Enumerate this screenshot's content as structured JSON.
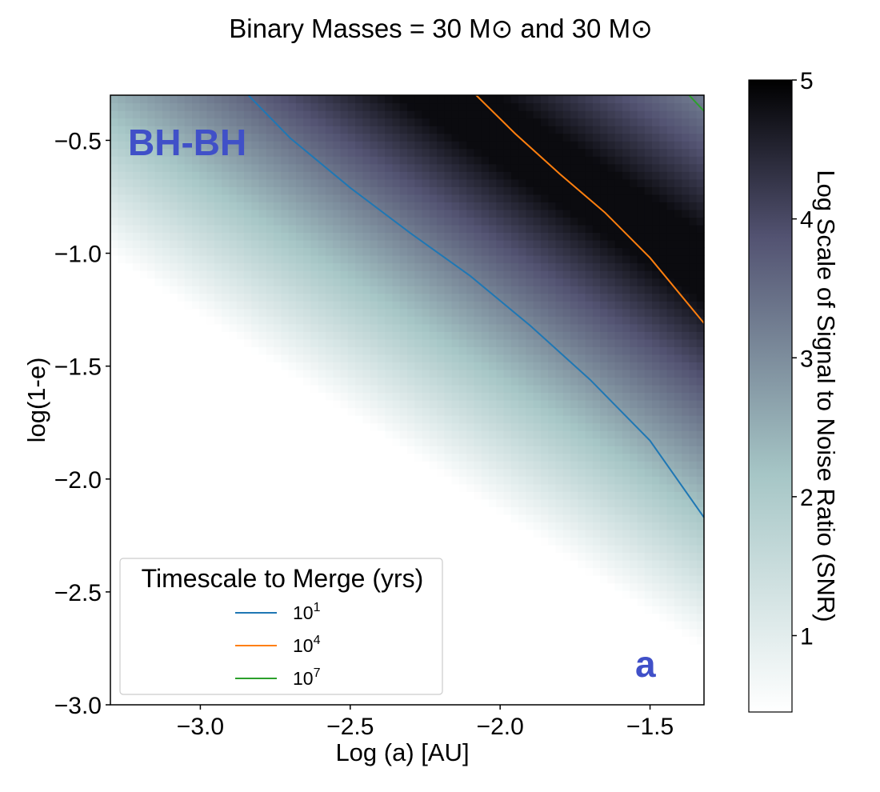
{
  "chart_data": {
    "type": "heatmap",
    "title": "Binary Masses = 30 M⊙ and 30 M⊙",
    "xlabel": "Log (a) [AU]",
    "ylabel": "log(1-e)",
    "xlim": [
      -3.3,
      -1.32
    ],
    "ylim": [
      -3.0,
      -0.3
    ],
    "x_ticks": [
      -3.0,
      -2.5,
      -2.0,
      -1.5
    ],
    "x_tick_labels": [
      "−3.0",
      "−2.5",
      "−2.0",
      "−1.5"
    ],
    "y_ticks": [
      -0.5,
      -1.0,
      -1.5,
      -2.0,
      -2.5,
      -3.0
    ],
    "y_tick_labels": [
      "−0.5",
      "−1.0",
      "−1.5",
      "−2.0",
      "−2.5",
      "−3.0"
    ],
    "colormap": "bone_r",
    "colorbar": {
      "label": "Log Scale of Signal to Noise Ratio (SNR)",
      "range": [
        0.45,
        5.0
      ],
      "ticks": [
        1,
        2,
        3,
        4,
        5
      ],
      "tick_labels": [
        "1",
        "2",
        "3",
        "4",
        "5"
      ]
    },
    "snr_model": {
      "ridge_intercept": -2.37,
      "ridge_slope": -0.88,
      "peak_value": 4.85,
      "upper_falloff_start": 0.3,
      "upper_falloff_rate": 2.7,
      "lower_falloff_rate": 2.85,
      "grid_size": 80
    },
    "legend": {
      "title": "Timescale to Merge (yrs)",
      "entries": [
        {
          "label": "10",
          "exponent": "1",
          "color": "#1f77b4"
        },
        {
          "label": "10",
          "exponent": "4",
          "color": "#ff7f0e"
        },
        {
          "label": "10",
          "exponent": "7",
          "color": "#2ca02c"
        }
      ]
    },
    "contours": [
      {
        "name": "10^1 yrs",
        "color": "#1f77b4",
        "x": [
          -2.84,
          -2.7,
          -2.5,
          -2.3,
          -2.1,
          -1.9,
          -1.7,
          -1.5,
          -1.32
        ],
        "y": [
          -0.3,
          -0.49,
          -0.71,
          -0.91,
          -1.1,
          -1.32,
          -1.56,
          -1.83,
          -2.17
        ]
      },
      {
        "name": "10^4 yrs",
        "color": "#ff7f0e",
        "x": [
          -2.08,
          -1.95,
          -1.8,
          -1.65,
          -1.5,
          -1.32
        ],
        "y": [
          -0.3,
          -0.47,
          -0.65,
          -0.82,
          -1.02,
          -1.31
        ]
      },
      {
        "name": "10^7 yrs",
        "color": "#2ca02c",
        "x": [
          -1.37,
          -1.32
        ],
        "y": [
          -0.3,
          -0.37
        ]
      }
    ],
    "annotations": [
      {
        "text": "BH-BH",
        "color": "#4050c8"
      },
      {
        "text": "a",
        "color": "#4050c8"
      }
    ]
  }
}
